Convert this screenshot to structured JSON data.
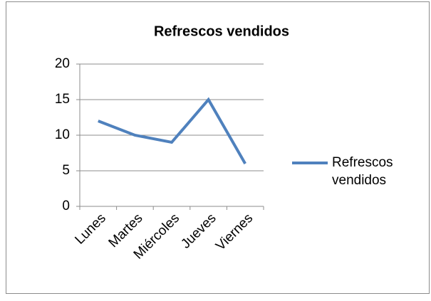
{
  "chart_data": {
    "type": "line",
    "title": "Refrescos vendidos",
    "categories": [
      "Lunes",
      "Martes",
      "Miércoles",
      "Jueves",
      "Viernes"
    ],
    "series": [
      {
        "name": "Refrescos vendidos",
        "color": "#4f81bd",
        "values": [
          12,
          10,
          9,
          15,
          6
        ]
      }
    ],
    "ylim": [
      0,
      20
    ],
    "yticks": [
      0,
      5,
      10,
      15,
      20
    ],
    "grid": true,
    "legend": "right"
  }
}
